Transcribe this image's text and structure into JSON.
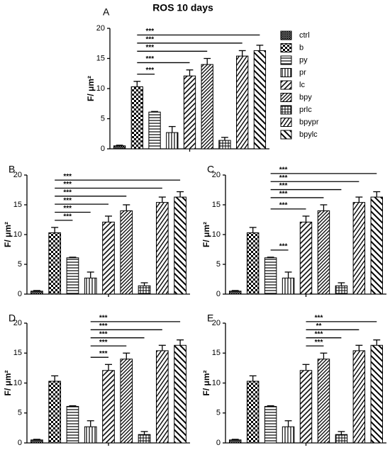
{
  "chart_data": [
    {
      "type": "bar",
      "panel": "A",
      "title": "ROS 10 days",
      "ylabel": "F/ μm²",
      "categories": [
        "ctrl",
        "b",
        "py",
        "pr",
        "lc",
        "bpy",
        "prlc",
        "bpypr",
        "bpylc"
      ],
      "values": [
        0.5,
        10.3,
        6.1,
        2.7,
        12.1,
        14.0,
        1.4,
        15.4,
        16.3
      ],
      "errors": [
        0.1,
        0.9,
        0.1,
        1.0,
        1.0,
        1.0,
        0.5,
        0.9,
        0.9
      ],
      "ylim": [
        0,
        20
      ],
      "yticks": [
        0,
        5,
        10,
        15,
        20
      ],
      "significance": [
        {
          "from": 1,
          "to": 2,
          "label": "***"
        },
        {
          "from": 1,
          "to": 4,
          "label": "***"
        },
        {
          "from": 1,
          "to": 5,
          "label": "***"
        },
        {
          "from": 1,
          "to": 7,
          "label": "***"
        },
        {
          "from": 1,
          "to": 8,
          "label": "***"
        }
      ]
    },
    {
      "type": "bar",
      "panel": "B",
      "ylabel": "F/ μm²",
      "values": [
        0.5,
        10.3,
        6.1,
        2.7,
        12.1,
        14.0,
        1.4,
        15.4,
        16.3
      ],
      "errors": [
        0.1,
        0.9,
        0.1,
        1.0,
        1.0,
        1.0,
        0.5,
        0.9,
        0.9
      ],
      "ylim": [
        0,
        20
      ],
      "yticks": [
        0,
        5,
        10,
        15,
        20
      ],
      "significance": [
        {
          "from": 1,
          "to": 2,
          "label": "***"
        },
        {
          "from": 1,
          "to": 3,
          "label": "***"
        },
        {
          "from": 1,
          "to": 4,
          "label": "***"
        },
        {
          "from": 1,
          "to": 5,
          "label": "***"
        },
        {
          "from": 1,
          "to": 7,
          "label": "***"
        },
        {
          "from": 1,
          "to": 8,
          "label": "***"
        }
      ]
    },
    {
      "type": "bar",
      "panel": "C",
      "ylabel": "F/ μm²",
      "values": [
        0.5,
        10.3,
        6.1,
        2.7,
        12.1,
        14.0,
        1.4,
        15.4,
        16.3
      ],
      "errors": [
        0.1,
        0.9,
        0.1,
        1.0,
        1.0,
        1.0,
        0.5,
        0.9,
        0.9
      ],
      "ylim": [
        0,
        20
      ],
      "yticks": [
        0,
        5,
        10,
        15,
        20
      ],
      "significance": [
        {
          "from": 2,
          "to": 3,
          "label": "***"
        },
        {
          "from": 2,
          "to": 4,
          "label": "***"
        },
        {
          "from": 2,
          "to": 5,
          "label": "***"
        },
        {
          "from": 2,
          "to": 6,
          "label": "***"
        },
        {
          "from": 2,
          "to": 7,
          "label": "***"
        },
        {
          "from": 2,
          "to": 8,
          "label": "***"
        }
      ]
    },
    {
      "type": "bar",
      "panel": "D",
      "ylabel": "F/ μm²",
      "values": [
        0.5,
        10.3,
        6.1,
        2.7,
        12.1,
        14.0,
        1.4,
        15.4,
        16.3
      ],
      "errors": [
        0.1,
        0.9,
        0.1,
        1.0,
        1.0,
        1.0,
        0.5,
        0.9,
        0.9
      ],
      "ylim": [
        0,
        20
      ],
      "yticks": [
        0,
        5,
        10,
        15,
        20
      ],
      "significance": [
        {
          "from": 3,
          "to": 4,
          "label": "***"
        },
        {
          "from": 3,
          "to": 5,
          "label": "***"
        },
        {
          "from": 3,
          "to": 6,
          "label": "***"
        },
        {
          "from": 3,
          "to": 7,
          "label": "***"
        },
        {
          "from": 3,
          "to": 8,
          "label": "***"
        }
      ]
    },
    {
      "type": "bar",
      "panel": "E",
      "ylabel": "F/ μm²",
      "values": [
        0.5,
        10.3,
        6.1,
        2.7,
        12.1,
        14.0,
        1.4,
        15.4,
        16.3
      ],
      "errors": [
        0.1,
        0.9,
        0.1,
        1.0,
        1.0,
        1.0,
        0.5,
        0.9,
        0.9
      ],
      "ylim": [
        0,
        20
      ],
      "yticks": [
        0,
        5,
        10,
        15,
        20
      ],
      "significance": [
        {
          "from": 4,
          "to": 5,
          "label": "***"
        },
        {
          "from": 4,
          "to": 6,
          "label": "***"
        },
        {
          "from": 4,
          "to": 7,
          "label": "**"
        },
        {
          "from": 4,
          "to": 8,
          "label": "***"
        }
      ]
    }
  ]
}
